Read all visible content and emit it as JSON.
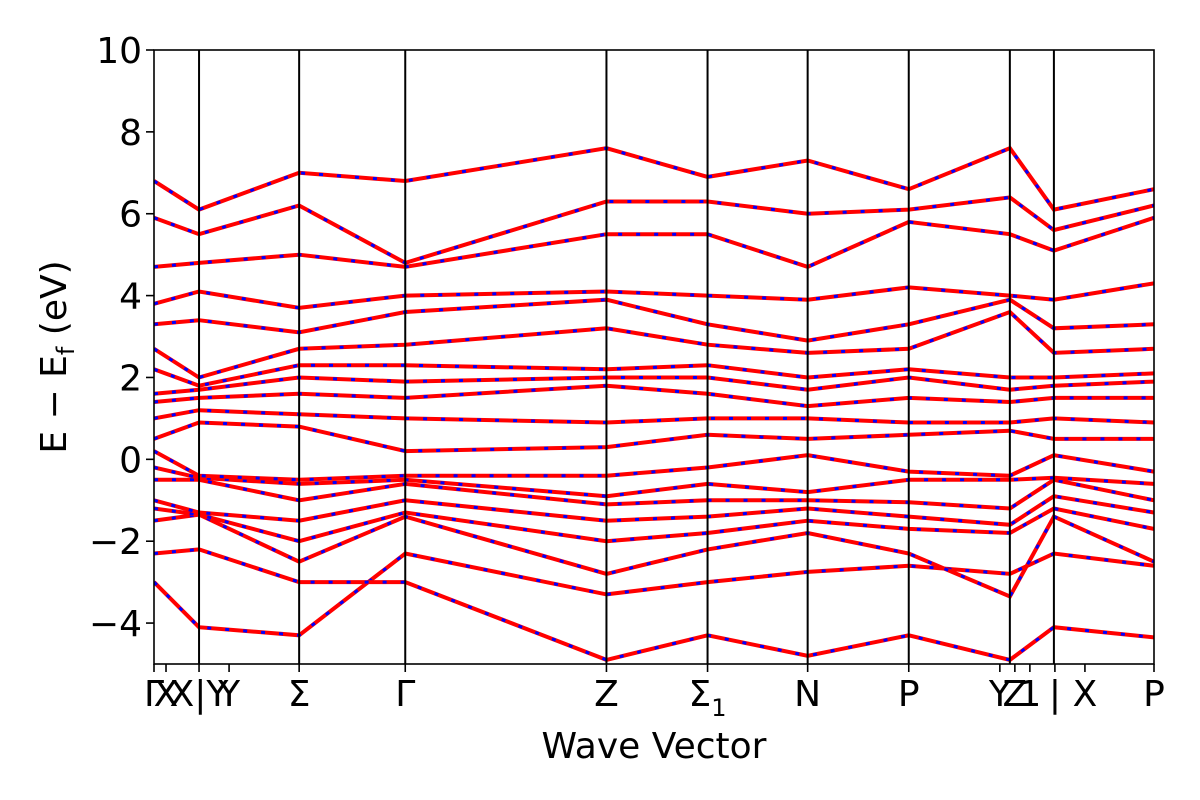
{
  "chart_data": {
    "type": "line",
    "title": "",
    "xlabel": "Wave Vector",
    "ylabel": "E − E",
    "ylabel_sub": "f",
    "ylabel_unit": " (eV)",
    "ylim": [
      -5,
      10
    ],
    "yticks": [
      -4,
      -2,
      0,
      2,
      4,
      6,
      8,
      10
    ],
    "ytick_labels": [
      "−4",
      "−2",
      "0",
      "2",
      "4",
      "6",
      "8",
      "10"
    ],
    "xlim": [
      0,
      9.99
    ],
    "kpoints": [
      {
        "x": 0.0,
        "label": "Γ"
      },
      {
        "x": 0.12,
        "label": "X"
      },
      {
        "x": 0.45,
        "label": "X|Y"
      },
      {
        "x": 0.75,
        "label": "Y"
      },
      {
        "x": 1.45,
        "label": "Σ"
      },
      {
        "x": 2.51,
        "label": "Γ"
      },
      {
        "x": 4.52,
        "label": "Z"
      },
      {
        "x": 5.53,
        "label": "Σ",
        "sub": "1"
      },
      {
        "x": 6.53,
        "label": "N"
      },
      {
        "x": 7.54,
        "label": "P"
      },
      {
        "x": 8.45,
        "label": "Y"
      },
      {
        "x": 8.6,
        "label": "Z"
      },
      {
        "x": 8.75,
        "label": "1"
      },
      {
        "x": 9.0,
        "label": "|"
      },
      {
        "x": 9.3,
        "label": "X"
      },
      {
        "x": 9.99,
        "label": "P"
      }
    ],
    "segment_lines": [
      0.45,
      1.45,
      2.51,
      4.52,
      5.53,
      6.53,
      7.54,
      8.55,
      8.99
    ],
    "colors": {
      "band_up": "#ff0000",
      "band_down": "#0000ff",
      "axes": "#000000"
    },
    "series": [
      {
        "x": [
          0,
          0.45,
          1.45,
          2.51,
          4.52,
          5.53,
          6.53,
          7.54,
          8.55,
          8.99,
          9.99
        ],
        "values": [
          -3.0,
          -4.1,
          -4.3,
          -2.3,
          -3.3,
          -3.0,
          -2.75,
          -2.6,
          -2.8,
          -2.3,
          -2.6
        ]
      },
      {
        "x": [
          0,
          0.45,
          1.45,
          2.51,
          4.52,
          5.53,
          6.53,
          7.54,
          8.55,
          8.99,
          9.99
        ],
        "values": [
          -2.3,
          -2.2,
          -3.0,
          -3.0,
          -4.9,
          -4.3,
          -4.8,
          -4.3,
          -4.9,
          -4.1,
          -4.35
        ]
      },
      {
        "x": [
          0,
          0.45,
          1.45,
          2.51,
          4.52,
          5.53,
          6.53,
          7.54,
          8.55,
          8.99,
          9.99
        ],
        "values": [
          -1.5,
          -1.35,
          -2.5,
          -1.4,
          -2.8,
          -2.2,
          -1.8,
          -2.3,
          -3.35,
          -1.4,
          -2.5
        ]
      },
      {
        "x": [
          0,
          0.45,
          1.45,
          2.51,
          4.52,
          5.53,
          6.53,
          7.54,
          8.55,
          8.99,
          9.99
        ],
        "values": [
          -1.2,
          -1.35,
          -2.0,
          -1.3,
          -2.0,
          -1.8,
          -1.5,
          -1.7,
          -1.8,
          -1.2,
          -1.7
        ]
      },
      {
        "x": [
          0,
          0.45,
          1.45,
          2.51,
          4.52,
          5.53,
          6.53,
          7.54,
          8.55,
          8.99,
          9.99
        ],
        "values": [
          -1.0,
          -1.3,
          -1.5,
          -1.0,
          -1.5,
          -1.4,
          -1.2,
          -1.4,
          -1.6,
          -0.9,
          -1.3
        ]
      },
      {
        "x": [
          0,
          0.45,
          1.45,
          2.51,
          4.52,
          5.53,
          6.53,
          7.54,
          8.55,
          8.99,
          9.99
        ],
        "values": [
          -0.5,
          -0.5,
          -1.0,
          -0.6,
          -1.1,
          -1.0,
          -1.0,
          -1.05,
          -1.2,
          -0.5,
          -1.0
        ]
      },
      {
        "x": [
          0,
          0.45,
          1.45,
          2.51,
          4.52,
          5.53,
          6.53,
          7.54,
          8.55,
          8.99,
          9.99
        ],
        "values": [
          -0.2,
          -0.45,
          -0.6,
          -0.5,
          -0.9,
          -0.6,
          -0.8,
          -0.5,
          -0.5,
          -0.45,
          -0.6
        ]
      },
      {
        "x": [
          0,
          0.45,
          1.45,
          2.51,
          4.52,
          5.53,
          6.53,
          7.54,
          8.55,
          8.99,
          9.99
        ],
        "values": [
          0.2,
          -0.4,
          -0.5,
          -0.4,
          -0.4,
          -0.2,
          0.1,
          -0.3,
          -0.4,
          0.1,
          -0.3
        ]
      },
      {
        "x": [
          0,
          0.45,
          1.45,
          2.51,
          4.52,
          5.53,
          6.53,
          7.54,
          8.55,
          8.99,
          9.99
        ],
        "values": [
          0.5,
          0.9,
          0.8,
          0.2,
          0.3,
          0.6,
          0.5,
          0.6,
          0.7,
          0.5,
          0.5
        ]
      },
      {
        "x": [
          0,
          0.45,
          1.45,
          2.51,
          4.52,
          5.53,
          6.53,
          7.54,
          8.55,
          8.99,
          9.99
        ],
        "values": [
          1.0,
          1.2,
          1.1,
          1.0,
          0.9,
          1.0,
          1.0,
          0.9,
          0.9,
          1.0,
          0.9
        ]
      },
      {
        "x": [
          0,
          0.45,
          1.45,
          2.51,
          4.52,
          5.53,
          6.53,
          7.54,
          8.55,
          8.99,
          9.99
        ],
        "values": [
          1.4,
          1.5,
          1.6,
          1.5,
          1.8,
          1.6,
          1.3,
          1.5,
          1.4,
          1.5,
          1.5
        ]
      },
      {
        "x": [
          0,
          0.45,
          1.45,
          2.51,
          4.52,
          5.53,
          6.53,
          7.54,
          8.55,
          8.99,
          9.99
        ],
        "values": [
          1.6,
          1.7,
          2.0,
          1.9,
          2.0,
          2.0,
          1.7,
          2.0,
          1.7,
          1.8,
          1.9
        ]
      },
      {
        "x": [
          0,
          0.45,
          1.45,
          2.51,
          4.52,
          5.53,
          6.53,
          7.54,
          8.55,
          8.99,
          9.99
        ],
        "values": [
          2.2,
          1.8,
          2.3,
          2.3,
          2.2,
          2.3,
          2.0,
          2.2,
          2.0,
          2.0,
          2.1
        ]
      },
      {
        "x": [
          0,
          0.45,
          1.45,
          2.51,
          4.52,
          5.53,
          6.53,
          7.54,
          8.55,
          8.99,
          9.99
        ],
        "values": [
          2.7,
          2.0,
          2.7,
          2.8,
          3.2,
          2.8,
          2.6,
          2.7,
          3.6,
          2.6,
          2.7
        ]
      },
      {
        "x": [
          0,
          0.45,
          1.45,
          2.51,
          4.52,
          5.53,
          6.53,
          7.54,
          8.55,
          8.99,
          9.99
        ],
        "values": [
          3.3,
          3.4,
          3.1,
          3.6,
          3.9,
          3.3,
          2.9,
          3.3,
          3.9,
          3.2,
          3.3
        ]
      },
      {
        "x": [
          0,
          0.45,
          1.45,
          2.51,
          4.52,
          5.53,
          6.53,
          7.54,
          8.55,
          8.99,
          9.99
        ],
        "values": [
          3.8,
          4.1,
          3.7,
          4.0,
          4.1,
          4.0,
          3.9,
          4.2,
          4.0,
          3.9,
          4.3
        ]
      },
      {
        "x": [
          0,
          0.45,
          1.45,
          2.51,
          4.52,
          5.53,
          6.53,
          7.54,
          8.55,
          8.99,
          9.99
        ],
        "values": [
          4.7,
          4.8,
          5.0,
          4.7,
          5.5,
          5.5,
          4.7,
          5.8,
          5.5,
          5.1,
          5.9
        ]
      },
      {
        "x": [
          0,
          0.45,
          1.45,
          2.51,
          4.52,
          5.53,
          6.53,
          7.54,
          8.55,
          8.99,
          9.99
        ],
        "values": [
          5.9,
          5.5,
          6.2,
          4.8,
          6.3,
          6.3,
          6.0,
          6.1,
          6.4,
          5.6,
          6.2
        ]
      },
      {
        "x": [
          0,
          0.45,
          1.45,
          2.51,
          4.52,
          5.53,
          6.53,
          7.54,
          8.55,
          8.99,
          9.99
        ],
        "values": [
          6.8,
          6.1,
          7.0,
          6.8,
          7.6,
          6.9,
          7.3,
          6.6,
          7.6,
          6.1,
          6.6
        ]
      }
    ]
  }
}
